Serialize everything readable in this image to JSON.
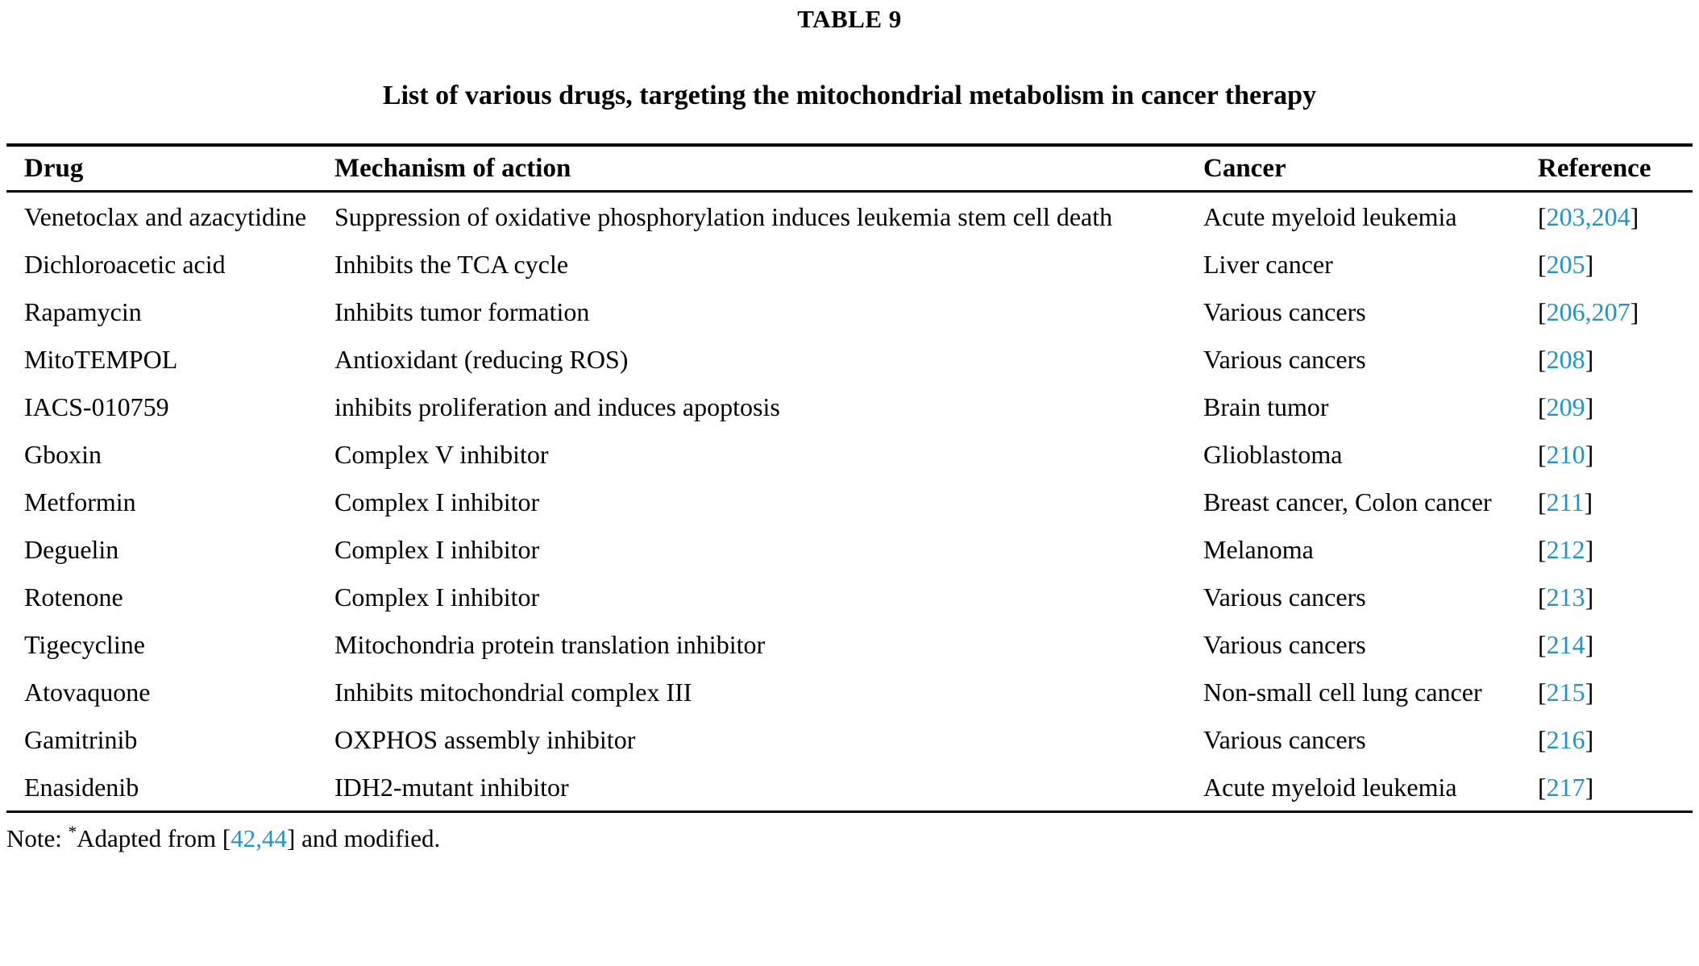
{
  "page": {
    "table_label": "TABLE 9",
    "title": "List of various drugs, targeting the mitochondrial metabolism in cancer therapy"
  },
  "colors": {
    "reference_link_blue": "#2492c8",
    "text": "#000000",
    "background": "#ffffff"
  },
  "table": {
    "headers": [
      "Drug",
      "Mechanism of action",
      "Cancer",
      "Reference"
    ],
    "bracket_open": "[",
    "bracket_close": "]",
    "rows": [
      {
        "drug": "Venetoclax and azacytidine",
        "mechanism": "Suppression of oxidative phosphorylation induces leukemia stem cell death",
        "cancer": "Acute myeloid leukemia",
        "refs": "203,204"
      },
      {
        "drug": "Dichloroacetic acid",
        "mechanism": "Inhibits the TCA cycle",
        "cancer": "Liver cancer",
        "refs": "205"
      },
      {
        "drug": "Rapamycin",
        "mechanism": "Inhibits tumor formation",
        "cancer": "Various cancers",
        "refs": "206,207"
      },
      {
        "drug": "MitoTEMPOL",
        "mechanism": "Antioxidant (reducing ROS)",
        "cancer": "Various cancers",
        "refs": "208"
      },
      {
        "drug": "IACS-010759",
        "mechanism": "inhibits proliferation and induces apoptosis",
        "cancer": "Brain tumor",
        "refs": "209"
      },
      {
        "drug": "Gboxin",
        "mechanism": "Complex V inhibitor",
        "cancer": "Glioblastoma",
        "refs": "210"
      },
      {
        "drug": "Metformin",
        "mechanism": "Complex I inhibitor",
        "cancer": "Breast cancer, Colon cancer",
        "refs": "211"
      },
      {
        "drug": "Deguelin",
        "mechanism": "Complex I inhibitor",
        "cancer": "Melanoma",
        "refs": "212"
      },
      {
        "drug": "Rotenone",
        "mechanism": "Complex I inhibitor",
        "cancer": "Various cancers",
        "refs": "213"
      },
      {
        "drug": "Tigecycline",
        "mechanism": "Mitochondria protein translation inhibitor",
        "cancer": "Various cancers",
        "refs": "214"
      },
      {
        "drug": "Atovaquone",
        "mechanism": "Inhibits mitochondrial complex III",
        "cancer": "Non-small cell lung cancer",
        "refs": "215"
      },
      {
        "drug": "Gamitrinib",
        "mechanism": "OXPHOS assembly inhibitor",
        "cancer": "Various cancers",
        "refs": "216"
      },
      {
        "drug": "Enasidenib",
        "mechanism": "IDH2-mutant inhibitor",
        "cancer": "Acute myeloid leukemia",
        "refs": "217"
      }
    ]
  },
  "note": {
    "prefix": "Note: ",
    "asterisk": "*",
    "body": "Adapted from ",
    "refs": "42,44",
    "suffix": " and modified."
  }
}
